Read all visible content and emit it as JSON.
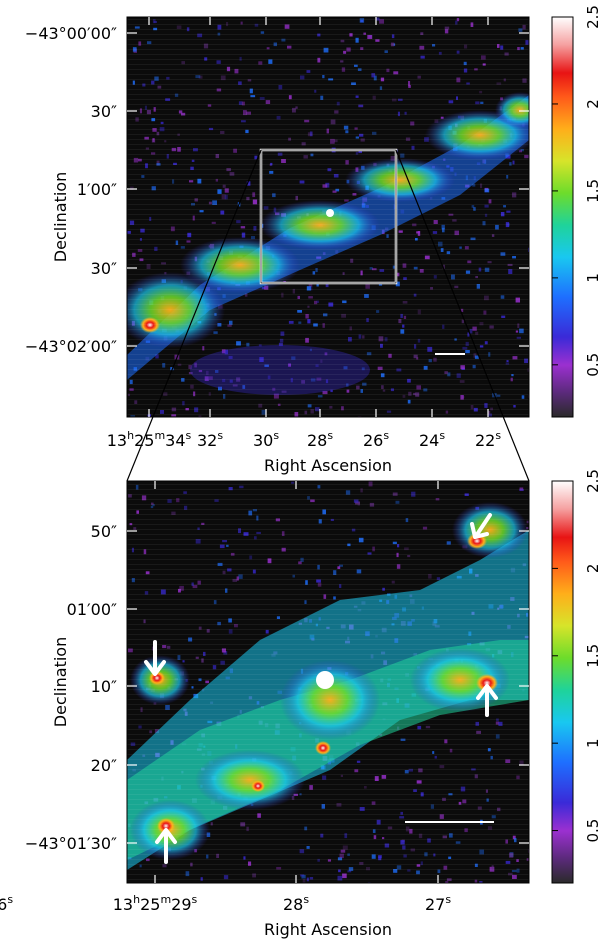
{
  "chart_data": [
    {
      "type": "heatmap",
      "xlabel": "Right Ascension",
      "ylabel": "Declination",
      "x_ticks": [
        {
          "label": "13h25m34s",
          "parts": [
            "13",
            "h",
            "25",
            "m",
            "34",
            "s"
          ]
        },
        {
          "label": "32s",
          "parts": [
            "32",
            "s"
          ]
        },
        {
          "label": "30s",
          "parts": [
            "30",
            "s"
          ]
        },
        {
          "label": "28s",
          "parts": [
            "28",
            "s"
          ]
        },
        {
          "label": "26s",
          "parts": [
            "26",
            "s"
          ]
        },
        {
          "label": "24s",
          "parts": [
            "24",
            "s"
          ]
        },
        {
          "label": "22s",
          "parts": [
            "22",
            "s"
          ]
        }
      ],
      "y_ticks": [
        "−43°00′00″",
        "30″",
        "1′00″",
        "30″",
        "−43°02′00″"
      ],
      "colorbar": {
        "ticks": [
          "0.5",
          "1",
          "1.5",
          "2",
          "2.5"
        ],
        "range": [
          0.2,
          2.5
        ]
      }
    },
    {
      "type": "heatmap",
      "xlabel": "Right Ascension",
      "ylabel": "Declination",
      "x_ticks": [
        {
          "label": "13h25m29s",
          "parts": [
            "13",
            "h",
            "25",
            "m",
            "29",
            "s"
          ]
        },
        {
          "label": "28s",
          "parts": [
            "28",
            "s"
          ]
        },
        {
          "label": "27s",
          "parts": [
            "27",
            "s"
          ]
        },
        {
          "label": "26s",
          "parts": [
            "26",
            "s"
          ]
        }
      ],
      "y_ticks": [
        "50″",
        "01′00″",
        "10″",
        "20″",
        "−43°01′30″"
      ],
      "colorbar": {
        "ticks": [
          "0.5",
          "1",
          "1.5",
          "2",
          "2.5"
        ],
        "range": [
          0.2,
          2.5
        ]
      }
    }
  ],
  "colors": {
    "background": "#0b0b0b",
    "colormap": [
      "#2a2a2a",
      "#5a2a7a",
      "#9b30d0",
      "#3a2ad8",
      "#1e6fff",
      "#19c8f0",
      "#1fd39a",
      "#6ddc2b",
      "#d7e42a",
      "#ffae1a",
      "#ff5a1a",
      "#e81414",
      "#f5a0a0",
      "#ffffff"
    ]
  }
}
